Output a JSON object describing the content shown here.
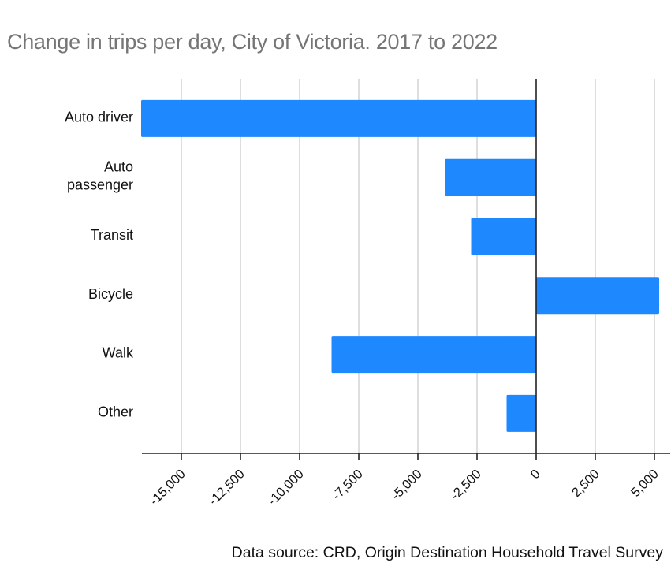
{
  "chart_data": {
    "type": "bar",
    "orientation": "horizontal",
    "title": "Change in trips per day, City of Victoria. 2017 to 2022",
    "source_note": "Data source: CRD, Origin Destination Household Travel Survey",
    "categories": [
      [
        "Auto driver"
      ],
      [
        "Auto",
        "passenger"
      ],
      [
        "Transit"
      ],
      [
        "Bicycle"
      ],
      [
        "Walk"
      ],
      [
        "Other"
      ]
    ],
    "values": [
      -16700,
      -3850,
      -2750,
      5200,
      -8650,
      -1250
    ],
    "xlim": [
      -16700,
      5700
    ],
    "xticks": [
      -15000,
      -12500,
      -10000,
      -7500,
      -5000,
      -2500,
      0,
      2500,
      5000
    ],
    "xtick_labels": [
      "-15,000",
      "-12,500",
      "-10,000",
      "-7,500",
      "-5,000",
      "-2,500",
      "0",
      "2,500",
      "5,000"
    ],
    "grid": true,
    "bar_color": "#1e88ff",
    "grid_color": "#cccccc",
    "axis_color": "#222222"
  }
}
